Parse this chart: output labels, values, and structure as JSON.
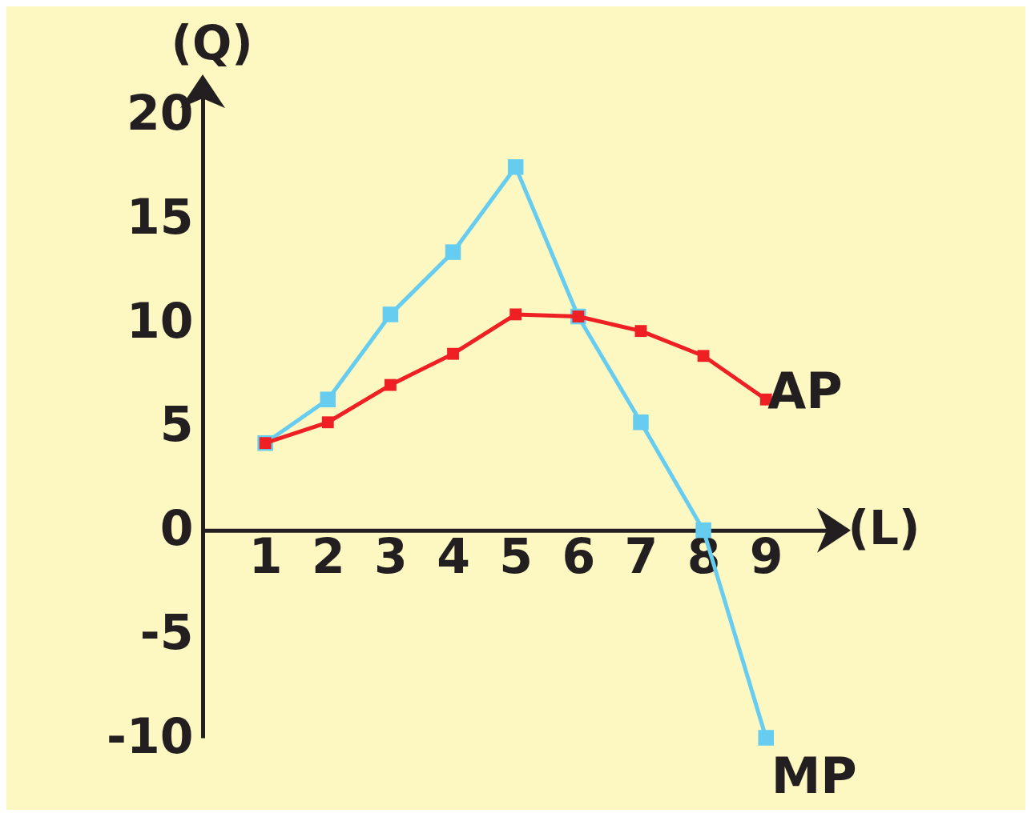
{
  "chart_data": {
    "type": "line",
    "xlabel": "(L)",
    "ylabel": "(Q)",
    "x": [
      1,
      2,
      3,
      4,
      5,
      6,
      7,
      8,
      9
    ],
    "series": [
      {
        "name": "MP",
        "color": "#66ccf0",
        "values": [
          4.2,
          6.3,
          10.4,
          13.4,
          17.5,
          10.3,
          5.2,
          0,
          -10
        ]
      },
      {
        "name": "AP",
        "color": "#ee2024",
        "values": [
          4.2,
          5.2,
          7,
          8.5,
          10.4,
          10.3,
          9.6,
          8.4,
          6.3
        ]
      }
    ],
    "xlim": [
      0,
      10.2
    ],
    "xticks": [
      1,
      2,
      3,
      4,
      5,
      6,
      7,
      8,
      9
    ],
    "ylim": [
      -10,
      21.5
    ],
    "yticks": [
      -10,
      -5,
      0,
      5,
      10,
      15,
      20
    ],
    "grid": false,
    "marker": "square",
    "line_style": "solid"
  }
}
